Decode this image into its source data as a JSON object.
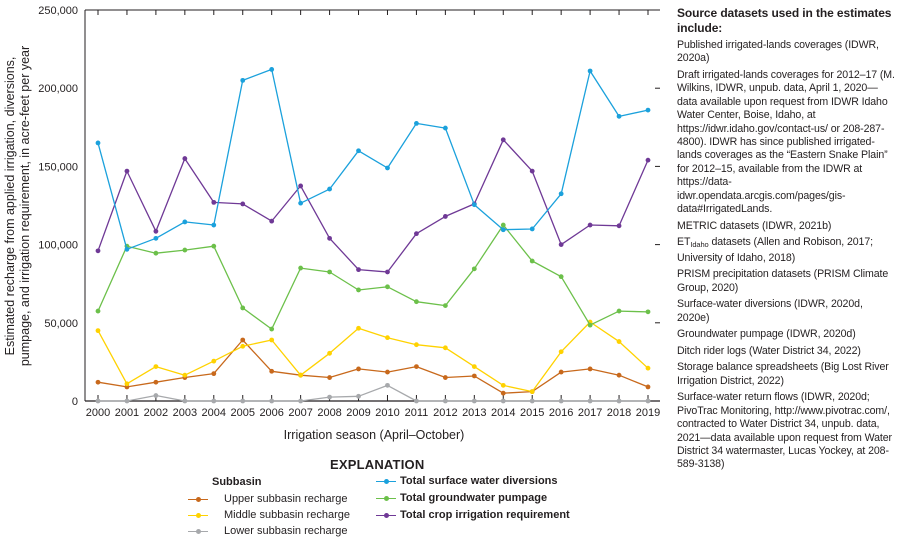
{
  "chart_data": {
    "type": "line",
    "title": "",
    "xlabel": "Irrigation season (April–October)",
    "ylabel_line1": "Estimated recharge from applied irrigation, diversions,",
    "ylabel_line2": "pumpage, and irrigation requirement, in acre-feet per year",
    "ylim": [
      0,
      250000
    ],
    "yticks": [
      0,
      50000,
      100000,
      150000,
      200000,
      250000
    ],
    "ytick_labels": [
      "0",
      "50,000",
      "100,000",
      "150,000",
      "200,000",
      "250,000"
    ],
    "grid": false,
    "x": [
      "2000",
      "2001",
      "2002",
      "2003",
      "2004",
      "2005",
      "2006",
      "2007",
      "2008",
      "2009",
      "2010",
      "2011",
      "2012",
      "2013",
      "2014",
      "2015",
      "2016",
      "2017",
      "2018",
      "2019"
    ],
    "series": [
      {
        "name": "Upper subbasin recharge",
        "color": "#c8691c",
        "values": [
          12000,
          9000,
          12000,
          15000,
          17500,
          39000,
          19000,
          16500,
          15000,
          20500,
          18500,
          22000,
          15000,
          16000,
          5000,
          6000,
          18500,
          20500,
          16500,
          9000
        ]
      },
      {
        "name": "Middle subbasin recharge",
        "color": "#ffd200",
        "values": [
          45000,
          11000,
          22000,
          16500,
          25500,
          35000,
          39000,
          16500,
          30500,
          46500,
          40500,
          36000,
          34000,
          22000,
          10000,
          6000,
          31500,
          50500,
          38000,
          21000
        ]
      },
      {
        "name": "Lower subbasin recharge",
        "color": "#a7a9ac",
        "values": [
          0,
          0,
          3500,
          0,
          0,
          0,
          0,
          0,
          2500,
          3000,
          10000,
          0,
          0,
          0,
          0,
          0,
          0,
          0,
          0,
          0
        ]
      },
      {
        "name": "Total surface water diversions",
        "color": "#1ba1dc",
        "values": [
          165000,
          97000,
          104000,
          114500,
          112500,
          205000,
          212000,
          126500,
          135500,
          160000,
          149000,
          177500,
          174500,
          125500,
          109500,
          110000,
          132500,
          211000,
          182000,
          186000
        ]
      },
      {
        "name": "Total groundwater pumpage",
        "color": "#6cc04a",
        "values": [
          57500,
          99000,
          94500,
          96500,
          99000,
          59500,
          46000,
          85000,
          82500,
          71000,
          73000,
          63500,
          61000,
          84500,
          112500,
          89500,
          79500,
          48500,
          57500,
          57000
        ]
      },
      {
        "name": "Total crop irrigation requirement",
        "color": "#6f3996",
        "values": [
          96000,
          147000,
          108500,
          155000,
          127000,
          126000,
          115000,
          137500,
          104000,
          84000,
          82500,
          107000,
          118000,
          126000,
          167000,
          147000,
          100000,
          112500,
          112000,
          154000
        ]
      }
    ],
    "legend": {
      "title": "EXPLANATION",
      "subheading": "Subbasin",
      "placement": "bottom"
    }
  },
  "sources": {
    "title": "Source datasets used in the estimates include:",
    "items": [
      "Published irrigated-lands coverages (IDWR, 2020a)",
      "Draft irrigated-lands coverages for 2012–17 (M. Wilkins, IDWR, unpub. data, April 1, 2020—data available upon request from IDWR Idaho Water Center, Boise, Idaho, at https://idwr.idaho.gov/contact-us/ or 208-287-4800). IDWR has since published irrigated-lands coverages as the “Eastern Snake Plain” for 2012–15, available from the IDWR at https://data-idwr.opendata.arcgis.com/pages/gis-data#IrrigatedLands.",
      "METRIC datasets (IDWR, 2021b)",
      "__ET__",
      "PRISM precipitation datasets (PRISM Climate Group, 2020)",
      "Surface-water diversions (IDWR, 2020d, 2020e)",
      "Groundwater pumpage (IDWR, 2020d)",
      "Ditch rider logs (Water District 34, 2022)",
      "Storage balance spreadsheets (Big Lost River Irrigation District, 2022)",
      "Surface-water return flows (IDWR, 2020d; PivoTrac Monitoring, http://www.pivotrac.com/, contracted to Water District 34, unpub. data, 2021—data available upon request from Water District 34 watermaster, Lucas Yockey, at 208-589-3138)"
    ],
    "et_item": {
      "prefix": "ET",
      "subscript": "Idaho",
      "rest": " datasets (Allen and Robison, 2017; University of Idaho, 2018)"
    }
  }
}
